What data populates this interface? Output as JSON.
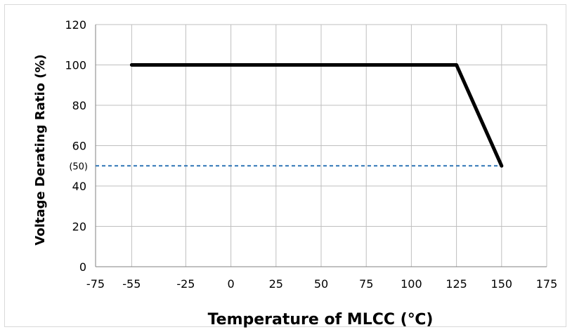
{
  "chart_data": {
    "type": "line",
    "title": "",
    "xlabel": "Temperature of MLCC (℃)",
    "ylabel": "Voltage Derating Ratio (%)",
    "xlim": [
      -75,
      175
    ],
    "ylim": [
      0,
      120
    ],
    "x_ticks": [
      -75,
      -55,
      -25,
      0,
      25,
      50,
      75,
      100,
      125,
      150,
      175
    ],
    "x_tick_labels": [
      "-75",
      "-55",
      "-25",
      "0",
      "25",
      "50",
      "75",
      "100",
      "125",
      "150",
      "175"
    ],
    "y_ticks": [
      0,
      20,
      40,
      60,
      80,
      100,
      120
    ],
    "y_tick_labels": [
      "0",
      "20",
      "40",
      "60",
      "80",
      "100",
      "120"
    ],
    "grid": true,
    "series": [
      {
        "points": [
          [
            -55,
            100
          ],
          [
            125,
            100
          ],
          [
            150,
            50
          ]
        ],
        "color": "#000000",
        "style": "solid"
      },
      {
        "points": [
          [
            -75,
            50
          ],
          [
            150,
            50
          ]
        ],
        "color": "#2e75b6",
        "style": "dashed"
      }
    ],
    "annotations": [
      {
        "text": "(50)",
        "x": -75,
        "y": 50
      }
    ]
  }
}
